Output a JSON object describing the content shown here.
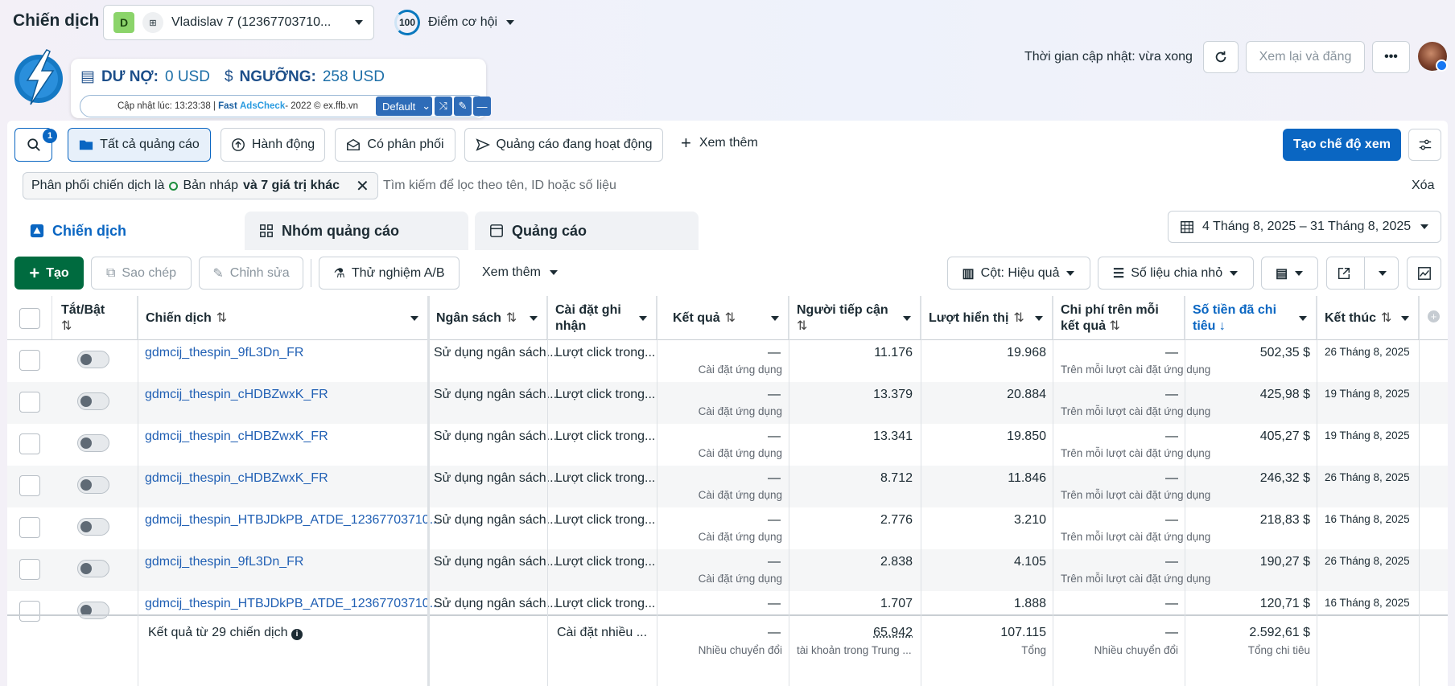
{
  "header": {
    "title": "Chiến dịch",
    "account": {
      "badge": "D",
      "name": "Vladislav 7 (12367703710..."
    },
    "score": {
      "value": "100",
      "label": "Điểm cơ hội"
    },
    "update_time": "Thời gian cập nhật: vừa xong",
    "review_publish_label": "Xem lại và đăng"
  },
  "extension": {
    "debt_label": "DƯ NỢ:",
    "debt_value": "0 USD",
    "threshold_label": "NGƯỠNG:",
    "threshold_value": "258 USD",
    "updated_prefix": "Cập nhật lúc: 13:23:38 | ",
    "brand_fast": "Fast",
    "brand_ads": "AdsCheck",
    "copyright": " - 2022 © ex.ffb.vn",
    "preset": "Default"
  },
  "toolbar": {
    "search_badge": "1",
    "all_ads": "Tất cả quảng cáo",
    "actions": "Hành động",
    "delivered": "Có phân phối",
    "active_ads": "Quảng cáo đang hoạt động",
    "see_more": "Xem thêm",
    "create_view": "Tạo chế độ xem"
  },
  "filter": {
    "chip_prefix": "Phân phối chiến dịch là ",
    "chip_value": "Bản nháp",
    "chip_suffix": "và 7 giá trị khác",
    "search_placeholder": "Tìm kiếm để lọc theo tên, ID hoặc số liệu",
    "clear": "Xóa"
  },
  "tabs": [
    {
      "label": "Chiến dịch",
      "active": true
    },
    {
      "label": "Nhóm quảng cáo",
      "active": false
    },
    {
      "label": "Quảng cáo",
      "active": false
    }
  ],
  "date_range": "4 Tháng 8, 2025 – 31 Tháng 8, 2025",
  "actions_bar": {
    "create": "Tạo",
    "duplicate": "Sao chép",
    "edit": "Chỉnh sửa",
    "ab_test": "Thử nghiệm A/B",
    "see_more": "Xem thêm",
    "columns": "Cột: Hiệu quả",
    "breakdown": "Số liệu chia nhỏ"
  },
  "columns": {
    "toggle": "Tắt/Bật",
    "campaign": "Chiến dịch",
    "budget": "Ngân sách",
    "attribution": "Cài đặt ghi nhận",
    "results": "Kết quả",
    "reach": "Người tiếp cận",
    "impressions": "Lượt hiển thị",
    "cost_per_result": "Chi phí trên mỗi kết quả",
    "amount_spent": "Số tiền đã chi tiêu",
    "ends": "Kết thúc"
  },
  "rows": [
    {
      "name": "gdmcij_thespin_9fL3Dn_FR",
      "budget": "Sử dụng ngân sách...",
      "attribution": "Lượt click trong...",
      "results": "—",
      "results_sub": "Cài đặt ứng dụng",
      "reach": "11.176",
      "impressions": "19.968",
      "cpr": "—",
      "cpr_sub": "Trên mỗi lượt cài đặt ứng dụng",
      "spent": "502,35 $",
      "ends": "26 Tháng 8, 2025"
    },
    {
      "name": "gdmcij_thespin_cHDBZwxK_FR",
      "budget": "Sử dụng ngân sách...",
      "attribution": "Lượt click trong...",
      "results": "—",
      "results_sub": "Cài đặt ứng dụng",
      "reach": "13.379",
      "impressions": "20.884",
      "cpr": "—",
      "cpr_sub": "Trên mỗi lượt cài đặt ứng dụng",
      "spent": "425,98 $",
      "ends": "19 Tháng 8, 2025"
    },
    {
      "name": "gdmcij_thespin_cHDBZwxK_FR",
      "budget": "Sử dụng ngân sách...",
      "attribution": "Lượt click trong...",
      "results": "—",
      "results_sub": "Cài đặt ứng dụng",
      "reach": "13.341",
      "impressions": "19.850",
      "cpr": "—",
      "cpr_sub": "Trên mỗi lượt cài đặt ứng dụng",
      "spent": "405,27 $",
      "ends": "19 Tháng 8, 2025"
    },
    {
      "name": "gdmcij_thespin_cHDBZwxK_FR",
      "budget": "Sử dụng ngân sách...",
      "attribution": "Lượt click trong...",
      "results": "—",
      "results_sub": "Cài đặt ứng dụng",
      "reach": "8.712",
      "impressions": "11.846",
      "cpr": "—",
      "cpr_sub": "Trên mỗi lượt cài đặt ứng dụng",
      "spent": "246,32 $",
      "ends": "26 Tháng 8, 2025"
    },
    {
      "name": "gdmcij_thespin_HTBJDkPB_ATDE_12367703710...",
      "budget": "Sử dụng ngân sách...",
      "attribution": "Lượt click trong...",
      "results": "—",
      "results_sub": "Cài đặt ứng dụng",
      "reach": "2.776",
      "impressions": "3.210",
      "cpr": "—",
      "cpr_sub": "Trên mỗi lượt cài đặt ứng dụng",
      "spent": "218,83 $",
      "ends": "16 Tháng 8, 2025"
    },
    {
      "name": "gdmcij_thespin_9fL3Dn_FR",
      "budget": "Sử dụng ngân sách...",
      "attribution": "Lượt click trong...",
      "results": "—",
      "results_sub": "Cài đặt ứng dụng",
      "reach": "2.838",
      "impressions": "4.105",
      "cpr": "—",
      "cpr_sub": "Trên mỗi lượt cài đặt ứng dụng",
      "spent": "190,27 $",
      "ends": "26 Tháng 8, 2025"
    },
    {
      "name": "gdmcij_thespin_HTBJDkPB_ATDE_12367703710...",
      "budget": "Sử dụng ngân sách...",
      "attribution": "Lượt click trong...",
      "results": "—",
      "results_sub": "",
      "reach": "1.707",
      "impressions": "1.888",
      "cpr": "—",
      "cpr_sub": "",
      "spent": "120,71 $",
      "ends": "16 Tháng 8, 2025"
    }
  ],
  "footer": {
    "summary": "Kết quả từ 29 chiến dịch",
    "attribution": "Cài đặt nhiều ...",
    "results": "—",
    "results_sub": "Nhiều chuyển đổi",
    "reach": "65.942",
    "reach_sub": "tài khoản trong Trung ...",
    "impressions": "107.115",
    "impressions_sub": "Tổng",
    "cpr": "—",
    "cpr_sub": "Nhiều chuyển đổi",
    "spent": "2.592,61 $",
    "spent_sub": "Tổng chi tiêu"
  }
}
